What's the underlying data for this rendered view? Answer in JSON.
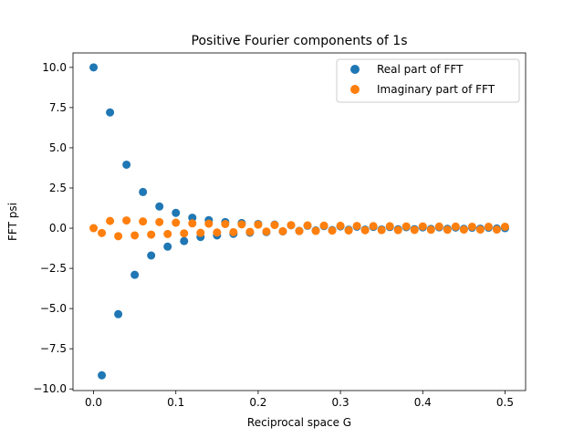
{
  "chart_data": {
    "type": "scatter",
    "title": "Positive Fourier components of 1s",
    "xlabel": "Reciprocal space G",
    "ylabel": "FFT psi",
    "xlim": [
      -0.025,
      0.525
    ],
    "ylim": [
      -10.1,
      10.9
    ],
    "xticks": [
      0.0,
      0.1,
      0.2,
      0.3,
      0.4,
      0.5
    ],
    "xtick_labels": [
      "0.0",
      "0.1",
      "0.2",
      "0.3",
      "0.4",
      "0.5"
    ],
    "yticks": [
      -10.0,
      -7.5,
      -5.0,
      -2.5,
      0.0,
      2.5,
      5.0,
      7.5,
      10.0
    ],
    "ytick_labels": [
      "−10.0",
      "−7.5",
      "−5.0",
      "−2.5",
      "0.0",
      "2.5",
      "5.0",
      "7.5",
      "10.0"
    ],
    "grid": false,
    "legend_position": "top-right",
    "x": [
      0.0,
      0.01,
      0.02,
      0.03,
      0.04,
      0.05,
      0.06,
      0.07,
      0.08,
      0.09,
      0.1,
      0.11,
      0.12,
      0.13,
      0.14,
      0.15,
      0.16,
      0.17,
      0.18,
      0.19,
      0.2,
      0.21,
      0.22,
      0.23,
      0.24,
      0.25,
      0.26,
      0.27,
      0.28,
      0.29,
      0.3,
      0.31,
      0.32,
      0.33,
      0.34,
      0.35,
      0.36,
      0.37,
      0.38,
      0.39,
      0.4,
      0.41,
      0.42,
      0.43,
      0.44,
      0.45,
      0.46,
      0.47,
      0.48,
      0.49,
      0.5
    ],
    "series": [
      {
        "name": "Real part of FFT",
        "color": "#1f77b4",
        "values": [
          10.0,
          -9.15,
          7.2,
          -5.35,
          3.95,
          -2.9,
          2.25,
          -1.7,
          1.35,
          -1.15,
          0.95,
          -0.8,
          0.65,
          -0.55,
          0.5,
          -0.45,
          0.38,
          -0.35,
          0.32,
          -0.28,
          0.26,
          -0.24,
          0.22,
          -0.2,
          0.18,
          -0.17,
          0.15,
          -0.14,
          0.13,
          -0.12,
          0.11,
          -0.1,
          0.09,
          -0.09,
          0.08,
          -0.08,
          0.07,
          -0.07,
          0.06,
          -0.06,
          0.05,
          -0.05,
          0.05,
          -0.04,
          0.04,
          -0.04,
          0.03,
          -0.03,
          0.03,
          -0.02,
          0.0
        ]
      },
      {
        "name": "Imaginary part of FFT",
        "color": "#ff7f0e",
        "values": [
          0.0,
          -0.3,
          0.45,
          -0.5,
          0.48,
          -0.45,
          0.42,
          -0.4,
          0.38,
          -0.36,
          0.34,
          -0.32,
          0.3,
          -0.29,
          0.28,
          -0.27,
          0.26,
          -0.25,
          0.24,
          -0.23,
          0.22,
          -0.21,
          0.2,
          -0.19,
          0.19,
          -0.18,
          0.17,
          -0.17,
          0.16,
          -0.15,
          0.15,
          -0.14,
          0.14,
          -0.13,
          0.13,
          -0.12,
          0.12,
          -0.12,
          0.11,
          -0.11,
          0.11,
          -0.1,
          0.1,
          -0.1,
          0.1,
          -0.09,
          0.09,
          -0.09,
          0.09,
          -0.09,
          0.09
        ]
      }
    ]
  }
}
